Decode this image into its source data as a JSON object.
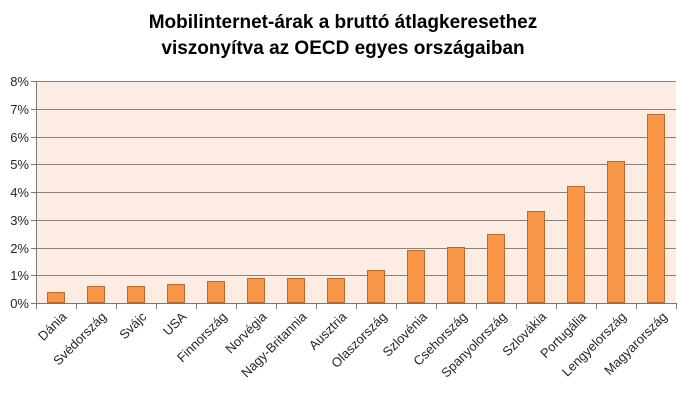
{
  "chart_data": {
    "type": "bar",
    "title": "Mobilinternet-árak a bruttó átlagkeresethez viszonyítva az OECD egyes országaiban",
    "title_lines": [
      "Mobilinternet-árak a bruttó átlagkeresethez",
      "viszonyítva az OECD egyes országaiban"
    ],
    "categories": [
      "Dánia",
      "Svédország",
      "Svájc",
      "USA",
      "Finnország",
      "Norvégia",
      "Nagy-Britannia",
      "Ausztria",
      "Olaszország",
      "Szlovénia",
      "Csehország",
      "Spanyolország",
      "Szlovákia",
      "Portugália",
      "Lengyelország",
      "Magyarország"
    ],
    "values": [
      0.4,
      0.6,
      0.6,
      0.7,
      0.8,
      0.9,
      0.9,
      0.9,
      1.2,
      1.9,
      2.0,
      2.5,
      3.3,
      4.2,
      5.1,
      6.8
    ],
    "unit": "%",
    "xlabel": "",
    "ylabel": "",
    "ylim": [
      0,
      8
    ],
    "ytick_step": 1,
    "ytick_labels": [
      "0%",
      "1%",
      "2%",
      "3%",
      "4%",
      "5%",
      "6%",
      "7%",
      "8%"
    ],
    "grid": true,
    "legend_position": "none",
    "colors": {
      "bar_fill": "#F79646",
      "bar_border": "#BA6A2F",
      "plot_bg": "#FCECE4",
      "gridline": "#8C8278",
      "axis": "#7F7870",
      "tick_text": "#262626",
      "title_text": "#000000",
      "page_bg": "#FFFFFF"
    }
  }
}
